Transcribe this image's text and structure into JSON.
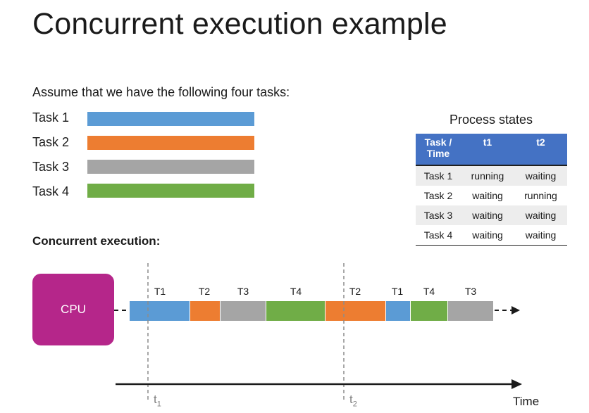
{
  "title": "Concurrent execution example",
  "intro": "Assume that we have the following four tasks:",
  "tasks": [
    {
      "label": "Task 1",
      "color": "#5b9bd5"
    },
    {
      "label": "Task 2",
      "color": "#ed7d31"
    },
    {
      "label": "Task 3",
      "color": "#a5a5a5"
    },
    {
      "label": "Task 4",
      "color": "#70ad47"
    }
  ],
  "section_label": "Concurrent execution:",
  "process_states": {
    "title": "Process states",
    "headers": [
      "Task / Time",
      "t1",
      "t2"
    ],
    "rows": [
      [
        "Task 1",
        "running",
        "waiting"
      ],
      [
        "Task 2",
        "waiting",
        "running"
      ],
      [
        "Task 3",
        "waiting",
        "waiting"
      ],
      [
        "Task 4",
        "waiting",
        "waiting"
      ]
    ]
  },
  "cpu_label": "CPU",
  "timeline": {
    "segments": [
      "T1",
      "T2",
      "T3",
      "T4",
      "T2",
      "T1",
      "T4",
      "T3"
    ],
    "markers": [
      "t",
      "t"
    ],
    "marker_subscripts": [
      "1",
      "2"
    ],
    "axis_label": "Time"
  }
}
